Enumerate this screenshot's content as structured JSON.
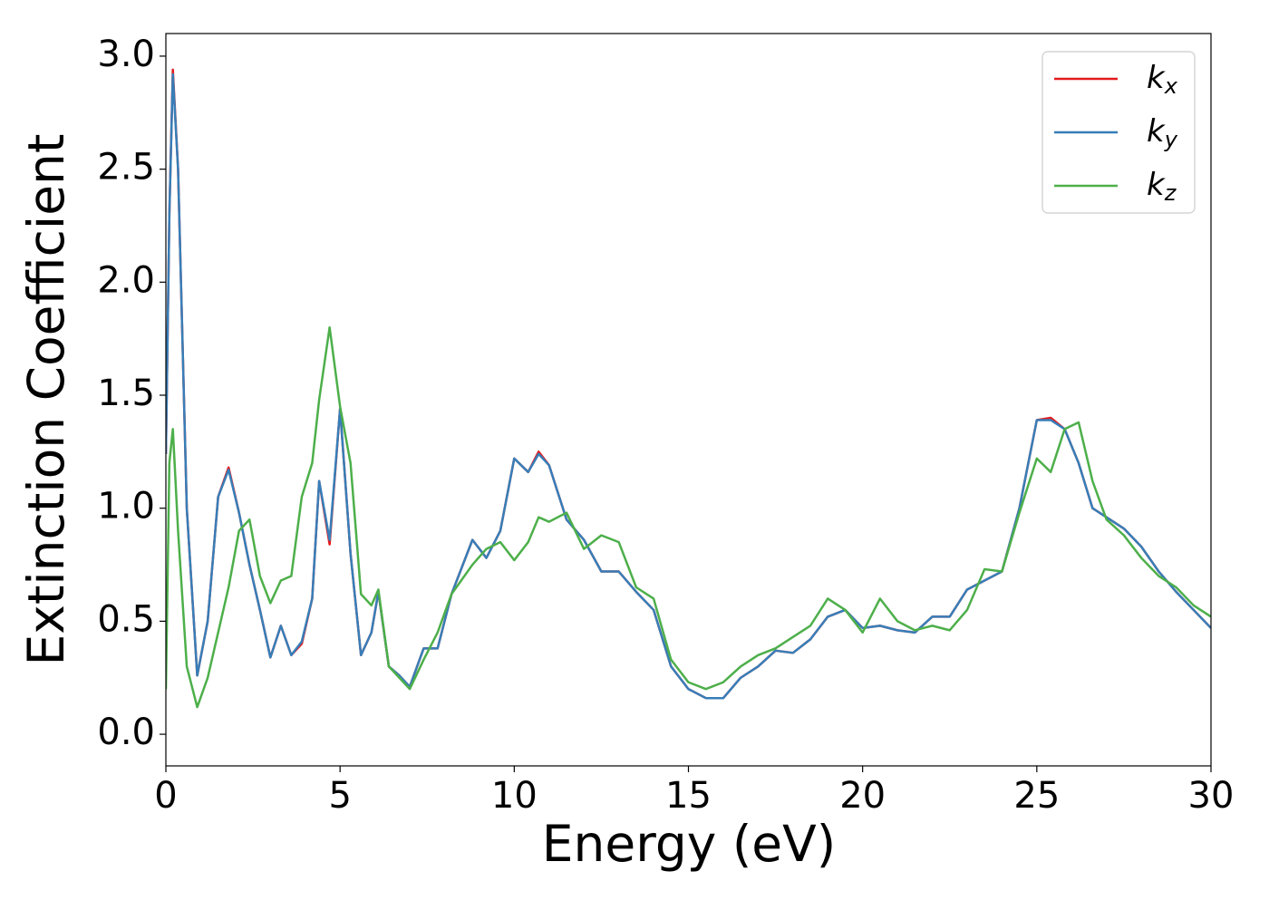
{
  "chart_data": {
    "type": "line",
    "xlabel": "Energy (eV)",
    "ylabel": "Extinction Coefficient",
    "x": [
      0,
      0.1,
      0.2,
      0.35,
      0.6,
      0.9,
      1.2,
      1.5,
      1.8,
      2.1,
      2.4,
      2.7,
      3.0,
      3.3,
      3.6,
      3.9,
      4.2,
      4.4,
      4.7,
      5.0,
      5.3,
      5.6,
      5.9,
      6.1,
      6.4,
      6.7,
      7.0,
      7.4,
      7.8,
      8.2,
      8.8,
      9.2,
      9.6,
      10.0,
      10.4,
      10.7,
      11.0,
      11.5,
      12.0,
      12.5,
      13.0,
      13.5,
      14.0,
      14.5,
      15.0,
      15.5,
      16.0,
      16.5,
      17.0,
      17.5,
      18.0,
      18.5,
      19.0,
      19.5,
      20.0,
      20.5,
      21.0,
      21.5,
      22.0,
      22.5,
      23.0,
      23.5,
      24.0,
      24.5,
      25.0,
      25.4,
      25.8,
      26.2,
      26.6,
      27.0,
      27.5,
      28.0,
      28.5,
      29.0,
      29.5,
      30.0
    ],
    "series": [
      {
        "name": "kx",
        "color": "#e41a1c",
        "values": [
          1.24,
          2.3,
          2.94,
          2.5,
          1.0,
          0.26,
          0.5,
          1.05,
          1.18,
          0.98,
          0.75,
          0.55,
          0.34,
          0.48,
          0.35,
          0.4,
          0.6,
          1.12,
          0.84,
          1.44,
          0.8,
          0.35,
          0.45,
          0.63,
          0.3,
          0.26,
          0.21,
          0.38,
          0.38,
          0.62,
          0.86,
          0.78,
          0.9,
          1.22,
          1.16,
          1.25,
          1.19,
          0.95,
          0.86,
          0.72,
          0.72,
          0.63,
          0.55,
          0.3,
          0.2,
          0.16,
          0.16,
          0.25,
          0.3,
          0.37,
          0.36,
          0.42,
          0.52,
          0.55,
          0.47,
          0.48,
          0.46,
          0.45,
          0.52,
          0.52,
          0.64,
          0.68,
          0.72,
          1.0,
          1.39,
          1.4,
          1.35,
          1.2,
          1.0,
          0.96,
          0.91,
          0.83,
          0.72,
          0.63,
          0.55,
          0.47
        ]
      },
      {
        "name": "ky",
        "color": "#377eb8",
        "values": [
          1.24,
          2.3,
          2.92,
          2.5,
          1.0,
          0.26,
          0.5,
          1.05,
          1.17,
          0.98,
          0.75,
          0.55,
          0.34,
          0.48,
          0.35,
          0.41,
          0.6,
          1.12,
          0.86,
          1.44,
          0.8,
          0.35,
          0.45,
          0.63,
          0.3,
          0.26,
          0.21,
          0.38,
          0.38,
          0.62,
          0.86,
          0.78,
          0.9,
          1.22,
          1.16,
          1.24,
          1.19,
          0.95,
          0.86,
          0.72,
          0.72,
          0.63,
          0.55,
          0.3,
          0.2,
          0.16,
          0.16,
          0.25,
          0.3,
          0.37,
          0.36,
          0.42,
          0.52,
          0.55,
          0.47,
          0.48,
          0.46,
          0.45,
          0.52,
          0.52,
          0.64,
          0.68,
          0.72,
          1.0,
          1.39,
          1.39,
          1.35,
          1.2,
          1.0,
          0.96,
          0.91,
          0.83,
          0.72,
          0.63,
          0.55,
          0.47
        ]
      },
      {
        "name": "kz",
        "color": "#4daf4a",
        "values": [
          0.2,
          1.2,
          1.35,
          0.9,
          0.3,
          0.12,
          0.25,
          0.45,
          0.65,
          0.9,
          0.95,
          0.7,
          0.58,
          0.68,
          0.7,
          1.05,
          1.2,
          1.48,
          1.8,
          1.45,
          1.2,
          0.62,
          0.57,
          0.64,
          0.3,
          0.25,
          0.2,
          0.33,
          0.45,
          0.62,
          0.75,
          0.82,
          0.85,
          0.77,
          0.85,
          0.96,
          0.94,
          0.98,
          0.82,
          0.88,
          0.85,
          0.65,
          0.6,
          0.33,
          0.23,
          0.2,
          0.23,
          0.3,
          0.35,
          0.38,
          0.43,
          0.48,
          0.6,
          0.55,
          0.45,
          0.6,
          0.5,
          0.46,
          0.48,
          0.46,
          0.55,
          0.73,
          0.72,
          0.98,
          1.22,
          1.16,
          1.35,
          1.38,
          1.12,
          0.95,
          0.88,
          0.78,
          0.7,
          0.65,
          0.57,
          0.52
        ]
      }
    ],
    "xlim": [
      0,
      30
    ],
    "ylim": [
      -0.14,
      3.1
    ],
    "xticks": [
      0,
      5,
      10,
      15,
      20,
      25,
      30
    ],
    "yticks": [
      {
        "value": 0,
        "label": "0.0"
      },
      0.5,
      {
        "value": 1,
        "label": "1.0"
      },
      1.5,
      {
        "value": 2,
        "label": "2.0"
      },
      2.5,
      {
        "value": 3,
        "label": "3.0"
      }
    ],
    "legend": "upper right",
    "grid": false
  }
}
